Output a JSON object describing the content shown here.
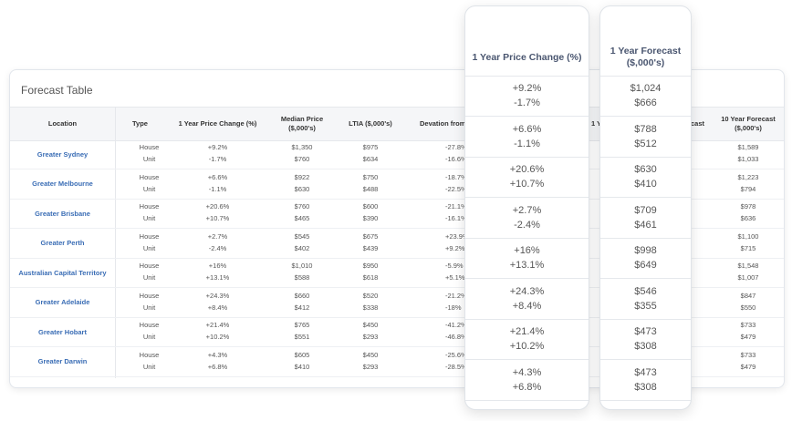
{
  "table": {
    "title": "Forecast Table",
    "headers": {
      "location": "Location",
      "type": "Type",
      "price_change": "1 Year Price Change (%)",
      "median_price": "Median Price ($,000's)",
      "ltia": "LTIA ($,000's)",
      "deviation": "Devation from",
      "hidden_a": "1 Ye",
      "hidden_b": "cast",
      "ten_year": "10 Year Forecast ($,000's)"
    },
    "rows": [
      {
        "location": "Greater Sydney",
        "type1": "House",
        "type2": "Unit",
        "change1": "+9.2%",
        "change2": "-1.7%",
        "median1": "$1,350",
        "median2": "$760",
        "ltia1": "$975",
        "ltia2": "$634",
        "dev1": "-27.8%",
        "dev2": "-16.6%",
        "ten1": "$1,589",
        "ten2": "$1,033"
      },
      {
        "location": "Greater Melbourne",
        "type1": "House",
        "type2": "Unit",
        "change1": "+6.6%",
        "change2": "-1.1%",
        "median1": "$922",
        "median2": "$630",
        "ltia1": "$750",
        "ltia2": "$488",
        "dev1": "-18.7%",
        "dev2": "-22.5%",
        "ten1": "$1,223",
        "ten2": "$794"
      },
      {
        "location": "Greater Brisbane",
        "type1": "House",
        "type2": "Unit",
        "change1": "+20.6%",
        "change2": "+10.7%",
        "median1": "$760",
        "median2": "$465",
        "ltia1": "$600",
        "ltia2": "$390",
        "dev1": "-21.1%",
        "dev2": "-16.1%",
        "ten1": "$978",
        "ten2": "$636"
      },
      {
        "location": "Greater Perth",
        "type1": "House",
        "type2": "Unit",
        "change1": "+2.7%",
        "change2": "-2.4%",
        "median1": "$545",
        "median2": "$402",
        "ltia1": "$675",
        "ltia2": "$439",
        "dev1": "+23.9%",
        "dev2": "+9.2%",
        "ten1": "$1,100",
        "ten2": "$715"
      },
      {
        "location": "Australian Capital Territory",
        "type1": "House",
        "type2": "Unit",
        "change1": "+16%",
        "change2": "+13.1%",
        "median1": "$1,010",
        "median2": "$588",
        "ltia1": "$950",
        "ltia2": "$618",
        "dev1": "-5.9%",
        "dev2": "+5.1%",
        "ten1": "$1,548",
        "ten2": "$1,007"
      },
      {
        "location": "Greater Adelaide",
        "type1": "House",
        "type2": "Unit",
        "change1": "+24.3%",
        "change2": "+8.4%",
        "median1": "$660",
        "median2": "$412",
        "ltia1": "$520",
        "ltia2": "$338",
        "dev1": "-21.2%",
        "dev2": "-18%",
        "ten1": "$847",
        "ten2": "$550"
      },
      {
        "location": "Greater Hobart",
        "type1": "House",
        "type2": "Unit",
        "change1": "+21.4%",
        "change2": "+10.2%",
        "median1": "$765",
        "median2": "$551",
        "ltia1": "$450",
        "ltia2": "$293",
        "dev1": "-41.2%",
        "dev2": "-46.8%",
        "ten1": "$733",
        "ten2": "$479"
      },
      {
        "location": "Greater Darwin",
        "type1": "House",
        "type2": "Unit",
        "change1": "+4.3%",
        "change2": "+6.8%",
        "median1": "$605",
        "median2": "$410",
        "ltia1": "$450",
        "ltia2": "$293",
        "dev1": "-25.6%",
        "dev2": "-28.5%",
        "ten1": "$733",
        "ten2": "$479"
      }
    ]
  },
  "price_panel": {
    "header": "1 Year Price Change (%)",
    "rows": [
      {
        "a": "+9.2%",
        "b": "-1.7%"
      },
      {
        "a": "+6.6%",
        "b": "-1.1%"
      },
      {
        "a": "+20.6%",
        "b": "+10.7%"
      },
      {
        "a": "+2.7%",
        "b": "-2.4%"
      },
      {
        "a": "+16%",
        "b": "+13.1%"
      },
      {
        "a": "+24.3%",
        "b": "+8.4%"
      },
      {
        "a": "+21.4%",
        "b": "+10.2%"
      },
      {
        "a": "+4.3%",
        "b": "+6.8%"
      }
    ]
  },
  "forecast_panel": {
    "header": "1 Year Forecast ($,000's)",
    "rows": [
      {
        "a": "$1,024",
        "b": "$666"
      },
      {
        "a": "$788",
        "b": "$512"
      },
      {
        "a": "$630",
        "b": "$410"
      },
      {
        "a": "$709",
        "b": "$461"
      },
      {
        "a": "$998",
        "b": "$649"
      },
      {
        "a": "$546",
        "b": "$355"
      },
      {
        "a": "$473",
        "b": "$308"
      },
      {
        "a": "$473",
        "b": "$308"
      }
    ]
  }
}
